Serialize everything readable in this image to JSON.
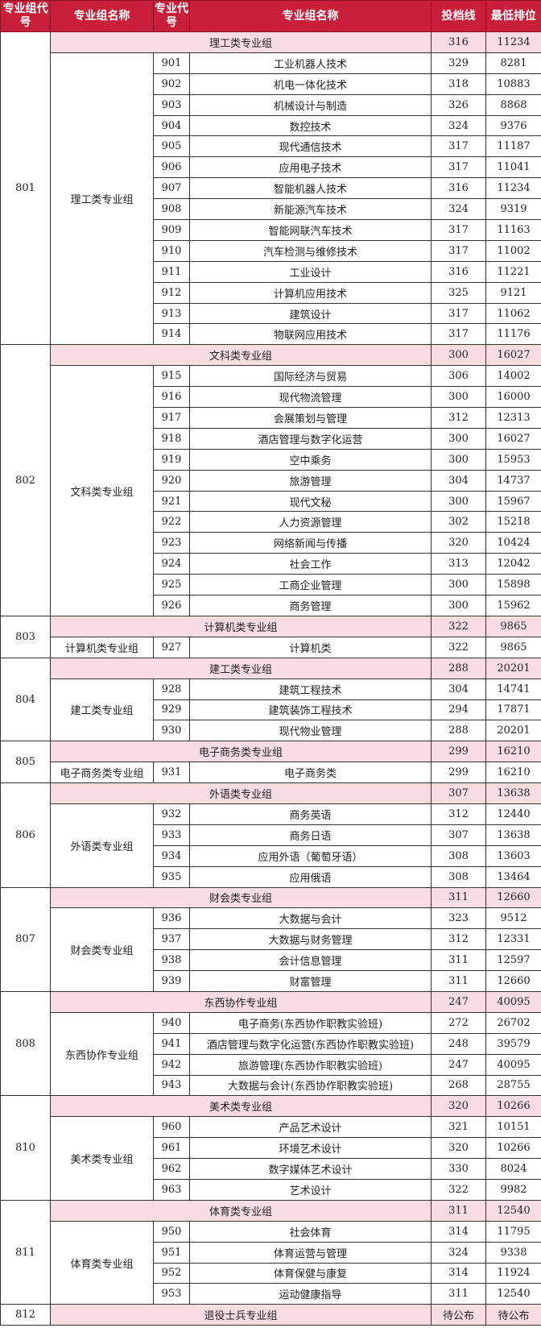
{
  "header": [
    "专业组代号",
    "专业组名称",
    "专业代号",
    "专业组名称",
    "投档线",
    "最低排位"
  ],
  "colors": {
    "header_bg": "#c8203a",
    "group_row_bg": "#f7dde1"
  },
  "groups": [
    {
      "code": "801",
      "name": "理工类专业组",
      "cutoff": "316",
      "rank": "11234",
      "majors": [
        {
          "code": "901",
          "name": "工业机器人技术",
          "cutoff": "329",
          "rank": "8281"
        },
        {
          "code": "902",
          "name": "机电一体化技术",
          "cutoff": "318",
          "rank": "10883"
        },
        {
          "code": "903",
          "name": "机械设计与制造",
          "cutoff": "326",
          "rank": "8868"
        },
        {
          "code": "904",
          "name": "数控技术",
          "cutoff": "324",
          "rank": "9376"
        },
        {
          "code": "905",
          "name": "现代通信技术",
          "cutoff": "317",
          "rank": "11187"
        },
        {
          "code": "906",
          "name": "应用电子技术",
          "cutoff": "317",
          "rank": "11041"
        },
        {
          "code": "907",
          "name": "智能机器人技术",
          "cutoff": "316",
          "rank": "11234"
        },
        {
          "code": "908",
          "name": "新能源汽车技术",
          "cutoff": "324",
          "rank": "9319"
        },
        {
          "code": "909",
          "name": "智能网联汽车技术",
          "cutoff": "317",
          "rank": "11163"
        },
        {
          "code": "910",
          "name": "汽车检测与维修技术",
          "cutoff": "317",
          "rank": "11002"
        },
        {
          "code": "911",
          "name": "工业设计",
          "cutoff": "316",
          "rank": "11221"
        },
        {
          "code": "912",
          "name": "计算机应用技术",
          "cutoff": "325",
          "rank": "9121"
        },
        {
          "code": "913",
          "name": "建筑设计",
          "cutoff": "317",
          "rank": "11062"
        },
        {
          "code": "914",
          "name": "物联网应用技术",
          "cutoff": "317",
          "rank": "11176"
        }
      ]
    },
    {
      "code": "802",
      "name": "文科类专业组",
      "cutoff": "300",
      "rank": "16027",
      "majors": [
        {
          "code": "915",
          "name": "国际经济与贸易",
          "cutoff": "306",
          "rank": "14002"
        },
        {
          "code": "916",
          "name": "现代物流管理",
          "cutoff": "300",
          "rank": "16000"
        },
        {
          "code": "917",
          "name": "会展策划与管理",
          "cutoff": "312",
          "rank": "12313"
        },
        {
          "code": "918",
          "name": "酒店管理与数字化运营",
          "cutoff": "300",
          "rank": "16027"
        },
        {
          "code": "919",
          "name": "空中乘务",
          "cutoff": "300",
          "rank": "15953"
        },
        {
          "code": "920",
          "name": "旅游管理",
          "cutoff": "304",
          "rank": "14737"
        },
        {
          "code": "921",
          "name": "现代文秘",
          "cutoff": "300",
          "rank": "15967"
        },
        {
          "code": "922",
          "name": "人力资源管理",
          "cutoff": "302",
          "rank": "15218"
        },
        {
          "code": "923",
          "name": "网络新闻与传播",
          "cutoff": "320",
          "rank": "10424"
        },
        {
          "code": "924",
          "name": "社会工作",
          "cutoff": "313",
          "rank": "12042"
        },
        {
          "code": "925",
          "name": "工商企业管理",
          "cutoff": "300",
          "rank": "15898"
        },
        {
          "code": "926",
          "name": "商务管理",
          "cutoff": "300",
          "rank": "15962"
        }
      ]
    },
    {
      "code": "803",
      "name": "计算机类专业组",
      "cutoff": "322",
      "rank": "9865",
      "majors": [
        {
          "code": "927",
          "name": "计算机类",
          "cutoff": "322",
          "rank": "9865"
        }
      ]
    },
    {
      "code": "804",
      "name": "建工类专业组",
      "cutoff": "288",
      "rank": "20201",
      "majors": [
        {
          "code": "928",
          "name": "建筑工程技术",
          "cutoff": "304",
          "rank": "14741"
        },
        {
          "code": "929",
          "name": "建筑装饰工程技术",
          "cutoff": "294",
          "rank": "17871"
        },
        {
          "code": "930",
          "name": "现代物业管理",
          "cutoff": "288",
          "rank": "20201"
        }
      ]
    },
    {
      "code": "805",
      "name": "电子商务类专业组",
      "cutoff": "299",
      "rank": "16210",
      "majors": [
        {
          "code": "931",
          "name": "电子商务类",
          "cutoff": "299",
          "rank": "16210"
        }
      ]
    },
    {
      "code": "806",
      "name": "外语类专业组",
      "cutoff": "307",
      "rank": "13638",
      "majors": [
        {
          "code": "932",
          "name": "商务英语",
          "cutoff": "312",
          "rank": "12440"
        },
        {
          "code": "933",
          "name": "商务日语",
          "cutoff": "307",
          "rank": "13638"
        },
        {
          "code": "934",
          "name": "应用外语（葡萄牙语）",
          "cutoff": "308",
          "rank": "13603"
        },
        {
          "code": "935",
          "name": "应用俄语",
          "cutoff": "308",
          "rank": "13464"
        }
      ]
    },
    {
      "code": "807",
      "name": "财会类专业组",
      "cutoff": "311",
      "rank": "12660",
      "majors": [
        {
          "code": "936",
          "name": "大数据与会计",
          "cutoff": "323",
          "rank": "9512"
        },
        {
          "code": "937",
          "name": "大数据与财务管理",
          "cutoff": "312",
          "rank": "12331"
        },
        {
          "code": "938",
          "name": "会计信息管理",
          "cutoff": "311",
          "rank": "12597"
        },
        {
          "code": "939",
          "name": "财富管理",
          "cutoff": "311",
          "rank": "12660"
        }
      ]
    },
    {
      "code": "808",
      "name": "东西协作专业组",
      "cutoff": "247",
      "rank": "40095",
      "majors": [
        {
          "code": "940",
          "name": "电子商务(东西协作职教实验班)",
          "cutoff": "272",
          "rank": "26702"
        },
        {
          "code": "941",
          "name": "酒店管理与数字化运营(东西协作职教实验班)",
          "cutoff": "248",
          "rank": "39579"
        },
        {
          "code": "942",
          "name": "旅游管理(东西协作职教实验班)",
          "cutoff": "247",
          "rank": "40095"
        },
        {
          "code": "943",
          "name": "大数据与会计(东西协作职教实验班)",
          "cutoff": "268",
          "rank": "28755"
        }
      ]
    },
    {
      "code": "810",
      "name": "美术类专业组",
      "cutoff": "320",
      "rank": "10266",
      "majors": [
        {
          "code": "960",
          "name": "产品艺术设计",
          "cutoff": "321",
          "rank": "10151"
        },
        {
          "code": "961",
          "name": "环境艺术设计",
          "cutoff": "320",
          "rank": "10266"
        },
        {
          "code": "962",
          "name": "数字媒体艺术设计",
          "cutoff": "330",
          "rank": "8024"
        },
        {
          "code": "963",
          "name": "艺术设计",
          "cutoff": "322",
          "rank": "9982"
        }
      ]
    },
    {
      "code": "811",
      "name": "体育类专业组",
      "cutoff": "311",
      "rank": "12540",
      "majors": [
        {
          "code": "950",
          "name": "社会体育",
          "cutoff": "314",
          "rank": "11795"
        },
        {
          "code": "951",
          "name": "体育运营与管理",
          "cutoff": "324",
          "rank": "9338"
        },
        {
          "code": "952",
          "name": "体育保健与康复",
          "cutoff": "314",
          "rank": "11924"
        },
        {
          "code": "953",
          "name": "运动健康指导",
          "cutoff": "311",
          "rank": "12540"
        }
      ]
    },
    {
      "code": "812",
      "name": "退役士兵专业组",
      "cutoff": "待公布",
      "rank": "待公布",
      "majors": []
    }
  ]
}
